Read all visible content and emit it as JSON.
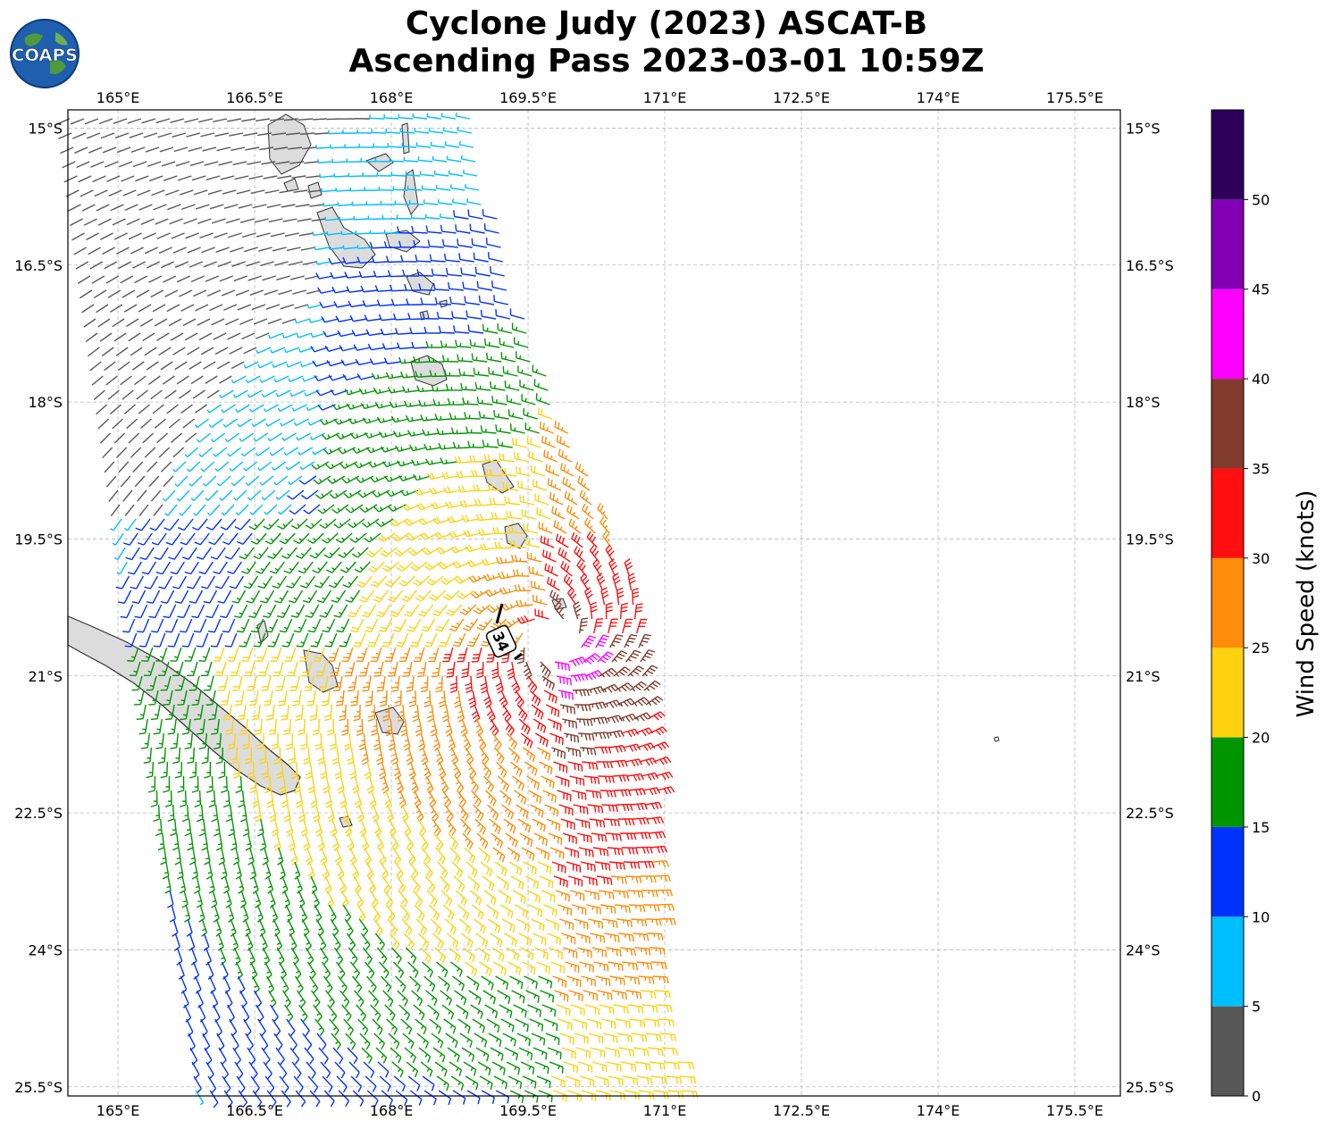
{
  "title": {
    "line1": "Cyclone Judy (2023) ASCAT-B",
    "line2": "Ascending Pass 2023-03-01 10:59Z"
  },
  "logo": {
    "text": "COAPS",
    "icon": "globe-icon"
  },
  "map": {
    "lon_range": [
      164.45,
      176.0
    ],
    "lat_range": [
      -25.6,
      -14.8
    ],
    "lon_ticks": [
      165,
      166.5,
      168,
      169.5,
      171,
      172.5,
      174,
      175.5
    ],
    "lon_tick_labels": [
      "165°E",
      "166.5°E",
      "168°E",
      "169.5°E",
      "171°E",
      "172.5°E",
      "174°E",
      "175.5°E"
    ],
    "lat_ticks": [
      -15,
      -16.5,
      -18,
      -19.5,
      -21,
      -22.5,
      -24,
      -25.5
    ],
    "lat_tick_labels": [
      "15°S",
      "16.5°S",
      "18°S",
      "19.5°S",
      "21°S",
      "22.5°S",
      "24°S",
      "25.5°S"
    ],
    "grid": true,
    "storm_marker": {
      "label": "34",
      "lon": 169.75,
      "lat": -20.6
    }
  },
  "colorbar": {
    "label": "Wind Speed (knots)",
    "ticks": [
      "0",
      "5",
      "10",
      "15",
      "20",
      "25",
      "30",
      "35",
      "40",
      "45",
      "50"
    ],
    "bins": [
      {
        "min": 0,
        "max": 5,
        "color": "#585858"
      },
      {
        "min": 5,
        "max": 10,
        "color": "#00bfff"
      },
      {
        "min": 10,
        "max": 15,
        "color": "#0032ff"
      },
      {
        "min": 15,
        "max": 20,
        "color": "#009600"
      },
      {
        "min": 20,
        "max": 25,
        "color": "#ffd20f"
      },
      {
        "min": 25,
        "max": 30,
        "color": "#ff8c0a"
      },
      {
        "min": 30,
        "max": 35,
        "color": "#ff0f0f"
      },
      {
        "min": 35,
        "max": 40,
        "color": "#823c2d"
      },
      {
        "min": 40,
        "max": 45,
        "color": "#ff00ff"
      },
      {
        "min": 45,
        "max": 50,
        "color": "#8200b4"
      },
      {
        "min": 50,
        "max": 55,
        "color": "#2d005a"
      }
    ]
  },
  "wind_field": {
    "center_lon": 169.75,
    "center_lat": -20.6,
    "swath_west_edge_top_lon": 164.4,
    "swath_east_edge_top_lon": 168.9,
    "swath_west_edge_bottom_lon": 165.8,
    "swath_east_edge_bottom_lon": 171.2,
    "rotation": "clockwise"
  }
}
